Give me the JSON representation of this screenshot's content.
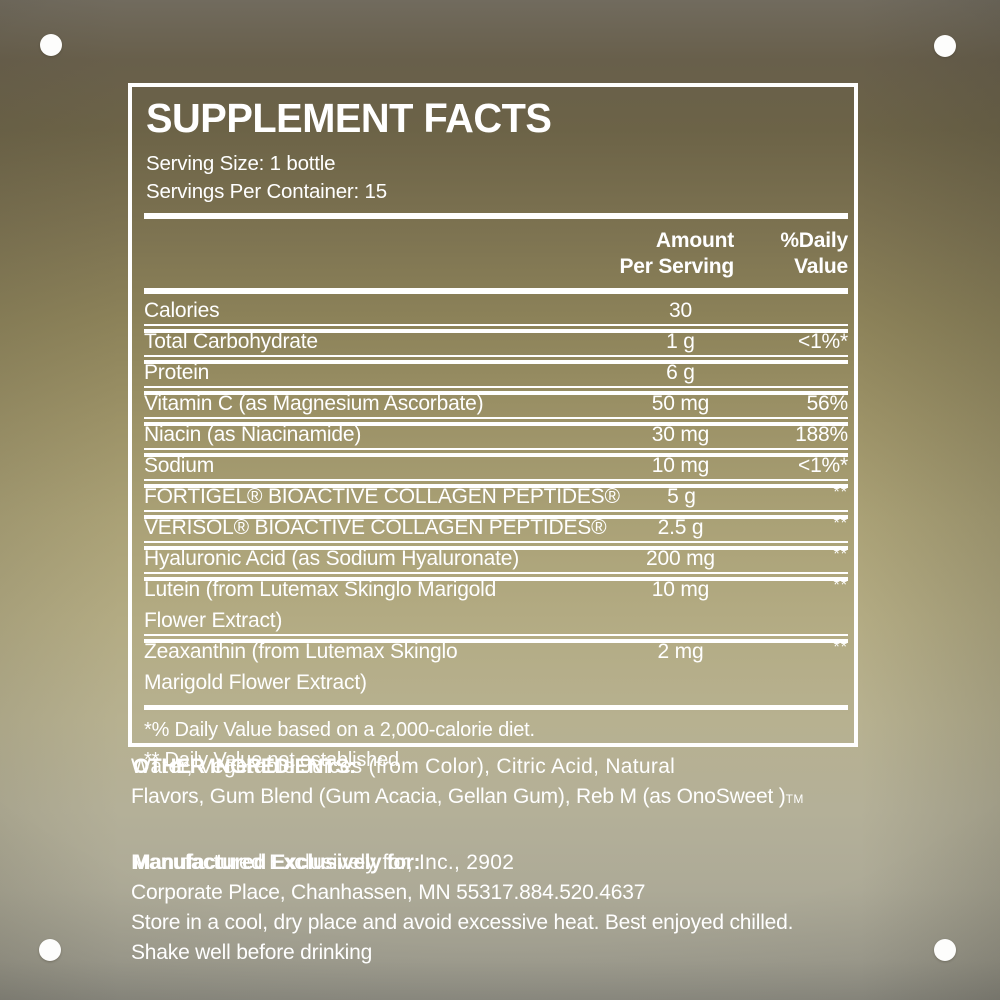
{
  "colors": {
    "label_white": "#FFFFFF",
    "bg_top_gray": "#716B5E",
    "bg_olive_gold": "#8C8259",
    "bg_light_khaki": "#B7B190",
    "bg_bottom_gray": "#8B8A80"
  },
  "panel": {
    "title": "SUPPLEMENT FACTS",
    "serving_size": "Serving Size: 1 bottle",
    "servings_per_container": "Servings Per Container: 15",
    "columns": {
      "amount_header": "Amount\nPer Serving",
      "daily_value_header": "%Daily\nValue"
    },
    "rows": [
      {
        "name_lines": [
          "Calories"
        ],
        "amount": "30",
        "dv": ""
      },
      {
        "name_lines": [
          "Total Carbohydrate"
        ],
        "amount": "1 g",
        "dv": "<1%*"
      },
      {
        "name_lines": [
          "Protein"
        ],
        "amount": "6 g",
        "dv": ""
      },
      {
        "name_lines": [
          "Vitamin C (as Magnesium Ascorbate)"
        ],
        "amount": "50 mg",
        "dv": "56%"
      },
      {
        "name_lines": [
          "Niacin (as Niacinamide)"
        ],
        "amount": "30 mg",
        "dv": "188%"
      },
      {
        "name_lines": [
          "Sodium"
        ],
        "amount": "10 mg",
        "dv": "<1%*"
      },
      {
        "name_lines": [
          "FORTIGEL® BIOACTIVE COLLAGEN PEPTIDES®"
        ],
        "amount": "5 g",
        "dv": "**"
      },
      {
        "name_lines": [
          "VERISOL® BIOACTIVE COLLAGEN PEPTIDES®"
        ],
        "amount": "2.5 g",
        "dv": "**"
      },
      {
        "name_lines": [
          "Hyaluronic Acid (as Sodium Hyaluronate)"
        ],
        "amount": "200 mg",
        "dv": "**"
      },
      {
        "name_lines": [
          "Lutein (from Lutemax Skinglo Marigold",
          "Flower Extract)"
        ],
        "amount": "10 mg",
        "dv": "**"
      },
      {
        "name_lines": [
          "Zeaxanthin (from Lutemax Skinglo",
          "Marigold Flower Extract)"
        ],
        "amount": "2 mg",
        "dv": "**"
      }
    ],
    "footnote_1": "*% Daily Value based on a 2,000-calorie diet.",
    "footnote_2": "** Daily Value not established"
  },
  "below": {
    "other_ingredients_heading": "OTHER INGREDIENTS:",
    "other_ingredients_line1": "Water, Vegetable Juices (from Color), Citric Acid, Natural",
    "other_ingredients_line2": "Flavors, Gum Blend (Gum Acacia, Gellan Gum), Reb M (as OnoSweet )",
    "tm_suffix": "TM",
    "manufactured_heading": "Manufactured Exclusively for:",
    "manufactured_line1": "Manufactured Exclusively for, Inc., 2902",
    "manufactured_line2": "Corporate Place, Chanhassen, MN 55317.884.520.4637",
    "storage_line1": "Store in a cool, dry place and avoid excessive heat. Best enjoyed chilled.",
    "storage_line2": "Shake well before drinking"
  }
}
